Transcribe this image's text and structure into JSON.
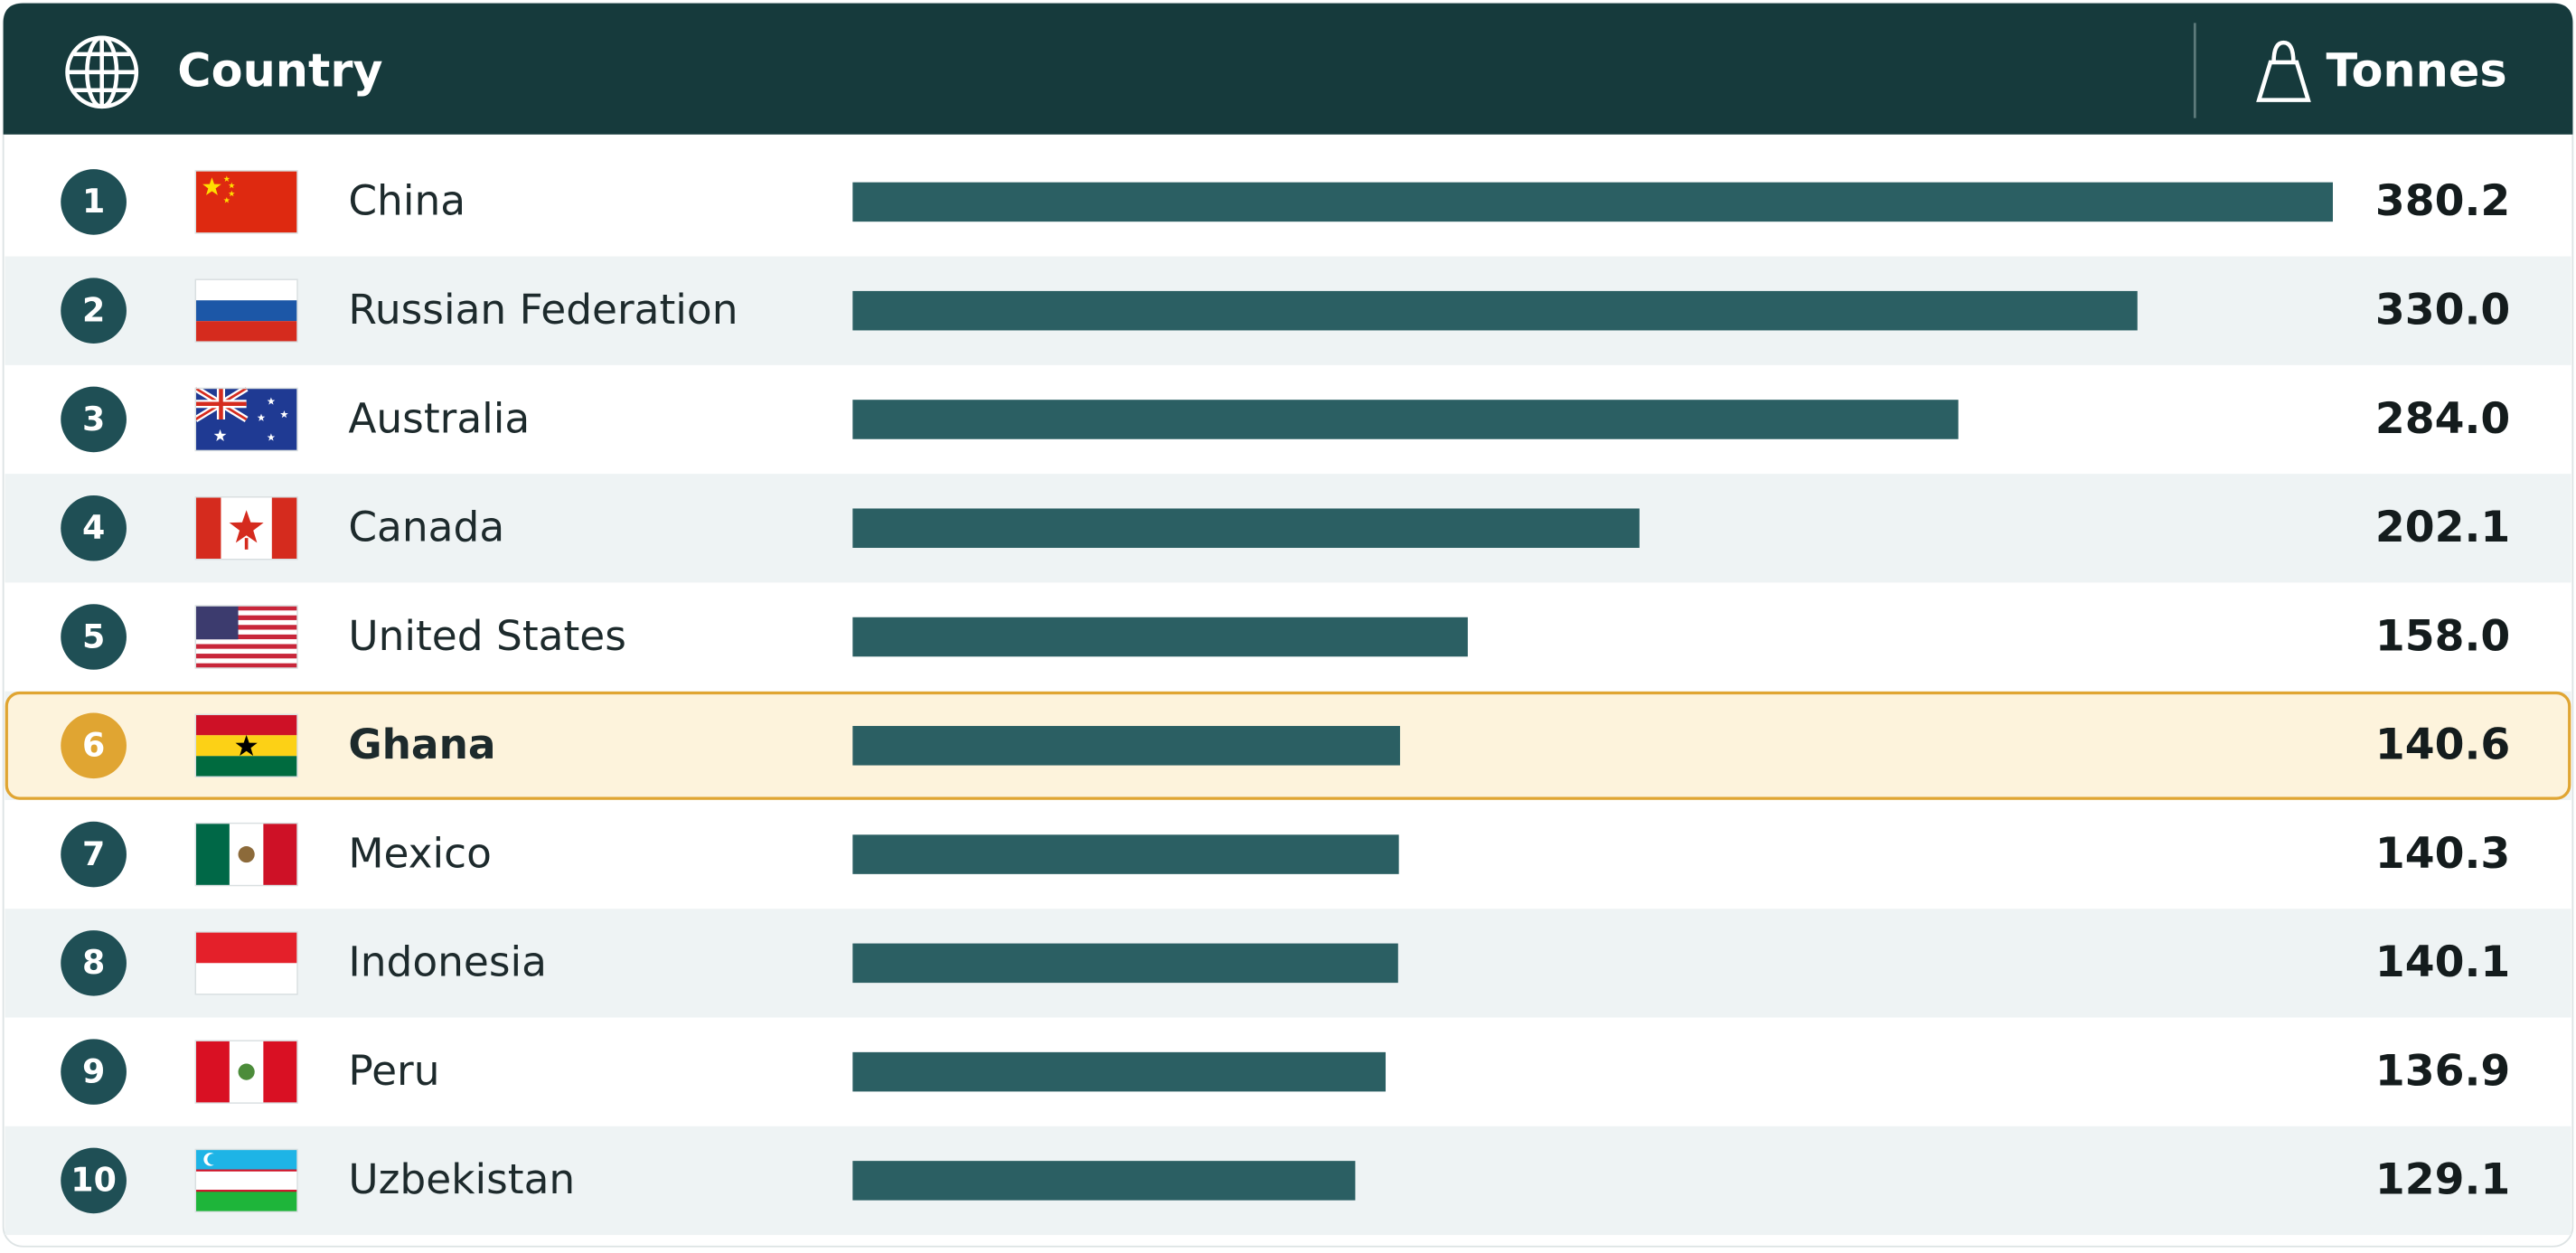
{
  "chart_data": {
    "type": "bar",
    "orientation": "horizontal",
    "category_header": "Country",
    "value_header": "Tonnes",
    "ranks": [
      1,
      2,
      3,
      4,
      5,
      6,
      7,
      8,
      9,
      10
    ],
    "categories": [
      "China",
      "Russian Federation",
      "Australia",
      "Canada",
      "United States",
      "Ghana",
      "Mexico",
      "Indonesia",
      "Peru",
      "Uzbekistan"
    ],
    "values": [
      380.2,
      330.0,
      284.0,
      202.1,
      158.0,
      140.6,
      140.3,
      140.1,
      136.9,
      129.1
    ],
    "value_labels": [
      "380.2",
      "330.0",
      "284.0",
      "202.1",
      "158.0",
      "140.6",
      "140.3",
      "140.1",
      "136.9",
      "129.1"
    ],
    "color": "#2b5f63",
    "highlight": {
      "index": 5,
      "color": "#e0a532"
    }
  }
}
